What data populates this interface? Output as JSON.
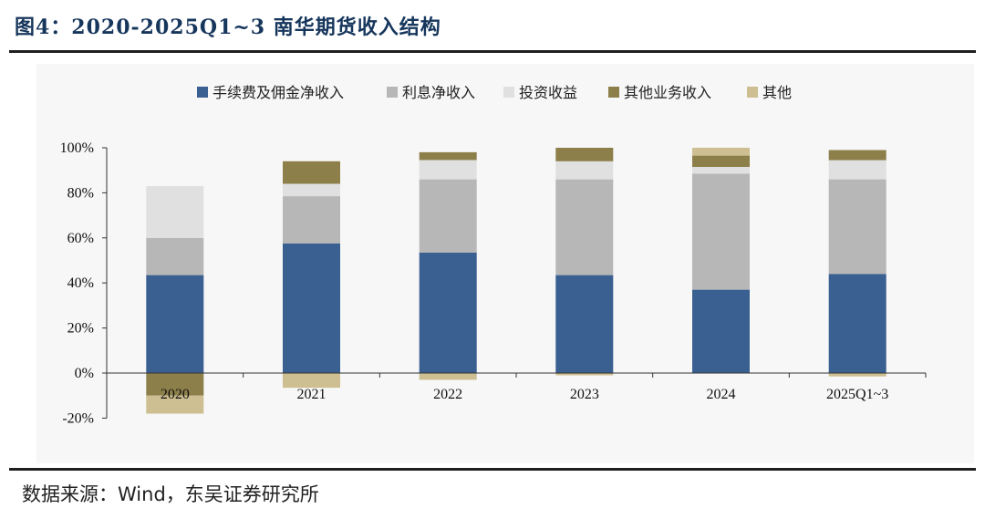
{
  "figure": {
    "title": "图4：2020-2025Q1~3 南华期货收入结构",
    "source": "数据来源：Wind，东吴证券研究所"
  },
  "chart_data": {
    "type": "bar",
    "stacked": true,
    "categories": [
      "2020",
      "2021",
      "2022",
      "2023",
      "2024",
      "2025Q1~3"
    ],
    "series": [
      {
        "name": "手续费及佣金净收入",
        "color": "#3a5f91",
        "values": [
          43.5,
          57.5,
          53.5,
          43.5,
          37,
          44
        ]
      },
      {
        "name": "利息净收入",
        "color": "#b7b7b7",
        "values": [
          16.5,
          21,
          32.5,
          42.5,
          51.5,
          42
        ]
      },
      {
        "name": "投资收益",
        "color": "#e0e0e0",
        "values": [
          23,
          5.5,
          8.5,
          8,
          3,
          8.5
        ]
      },
      {
        "name": "其他业务收入",
        "color": "#8d7f4a",
        "values": [
          -10,
          10,
          3.5,
          6,
          5,
          4.5
        ]
      },
      {
        "name": "其他",
        "color": "#cdbf91",
        "values": [
          -8,
          -6.5,
          -3,
          -1,
          3.5,
          -1.5
        ]
      }
    ],
    "ylim": [
      -20,
      100
    ],
    "yticks": [
      -20,
      0,
      20,
      40,
      60,
      80,
      100
    ],
    "ytick_labels": [
      "-20%",
      "0%",
      "20%",
      "40%",
      "60%",
      "80%",
      "100%"
    ],
    "xlabel": "",
    "ylabel": "",
    "legend_position": "top",
    "grid": false
  }
}
